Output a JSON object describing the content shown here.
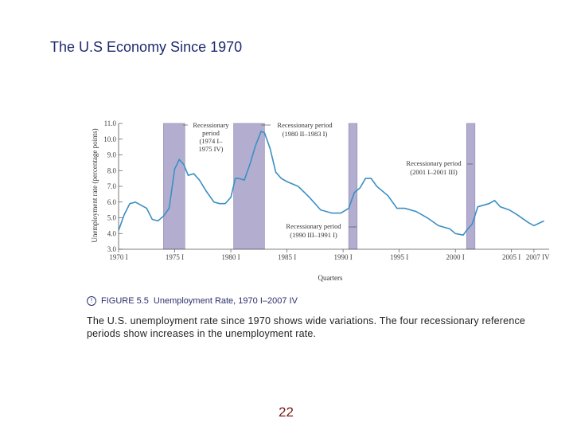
{
  "slide": {
    "title": "The U.S Economy Since 1970",
    "figure_label": "FIGURE 5.5",
    "figure_title": "Unemployment Rate, 1970 I–2007 IV",
    "description": "The U.S. unemployment rate since 1970 shows wide variations. The four recessionary reference periods show increases in the unemployment rate.",
    "page_number": "22"
  },
  "colors": {
    "line": "#3a8fc4",
    "shade": "#b3aed0",
    "axis": "#555555"
  },
  "chart_data": {
    "type": "line",
    "xlabel": "Quarters",
    "ylabel": "Unemployment rate (percentage points)",
    "ylim": [
      3.0,
      11.0
    ],
    "xlim": [
      1970.0,
      2008.0
    ],
    "yticks": [
      "3.0",
      "4.0",
      "5.0",
      "6.0",
      "7.0",
      "8.0",
      "9.0",
      "10.0",
      "11.0"
    ],
    "xticks": [
      {
        "v": 1970,
        "label": "1970 I"
      },
      {
        "v": 1975,
        "label": "1975 I"
      },
      {
        "v": 1980,
        "label": "1980 I"
      },
      {
        "v": 1985,
        "label": "1985 I"
      },
      {
        "v": 1990,
        "label": "1990 I"
      },
      {
        "v": 1995,
        "label": "1995 I"
      },
      {
        "v": 2000,
        "label": "2000 I"
      },
      {
        "v": 2005,
        "label": "2005 I"
      },
      {
        "v": 2007,
        "label": "2007 IV"
      }
    ],
    "recessions": [
      {
        "start": 1974.0,
        "end": 1975.9,
        "label_lines": [
          "Recessionary",
          "period",
          "(1974 I–",
          "1975 IV)"
        ]
      },
      {
        "start": 1980.25,
        "end": 1983.0,
        "label_lines": [
          "Recessionary period",
          "(1980 II–1983 I)"
        ]
      },
      {
        "start": 1990.5,
        "end": 1991.25,
        "label_lines": [
          "Recessionary period",
          "(1990 III–1991 I)"
        ]
      },
      {
        "start": 2001.0,
        "end": 2001.75,
        "label_lines": [
          "Recessionary period",
          "(2001 I–2001 III)"
        ]
      }
    ],
    "series": [
      {
        "name": "Unemployment rate",
        "x": [
          1970.0,
          1970.5,
          1971.0,
          1971.5,
          1972.0,
          1972.5,
          1973.0,
          1973.5,
          1974.0,
          1974.5,
          1975.0,
          1975.4,
          1975.8,
          1976.2,
          1976.7,
          1977.2,
          1977.8,
          1978.5,
          1979.0,
          1979.5,
          1980.0,
          1980.4,
          1980.7,
          1981.2,
          1981.7,
          1982.2,
          1982.7,
          1983.0,
          1983.5,
          1984.0,
          1984.5,
          1985.0,
          1986.0,
          1987.0,
          1988.0,
          1989.0,
          1989.8,
          1990.5,
          1991.0,
          1991.5,
          1992.0,
          1992.5,
          1993.0,
          1994.0,
          1994.8,
          1995.5,
          1996.5,
          1997.5,
          1998.5,
          1999.5,
          2000.0,
          2000.7,
          2001.0,
          2001.5,
          2002.0,
          2002.5,
          2003.0,
          2003.5,
          2004.0,
          2004.8,
          2005.5,
          2006.5,
          2007.0,
          2007.9
        ],
        "y": [
          4.2,
          5.2,
          5.9,
          6.0,
          5.8,
          5.6,
          4.9,
          4.8,
          5.1,
          5.6,
          8.1,
          8.7,
          8.4,
          7.7,
          7.8,
          7.4,
          6.7,
          6.0,
          5.9,
          5.9,
          6.3,
          7.5,
          7.5,
          7.4,
          8.4,
          9.6,
          10.5,
          10.4,
          9.4,
          7.9,
          7.5,
          7.3,
          7.0,
          6.3,
          5.5,
          5.3,
          5.3,
          5.6,
          6.6,
          6.9,
          7.5,
          7.5,
          7.0,
          6.4,
          5.6,
          5.6,
          5.4,
          5.0,
          4.5,
          4.3,
          4.0,
          3.9,
          4.2,
          4.6,
          5.7,
          5.8,
          5.9,
          6.1,
          5.7,
          5.5,
          5.2,
          4.7,
          4.5,
          4.8
        ]
      }
    ]
  }
}
